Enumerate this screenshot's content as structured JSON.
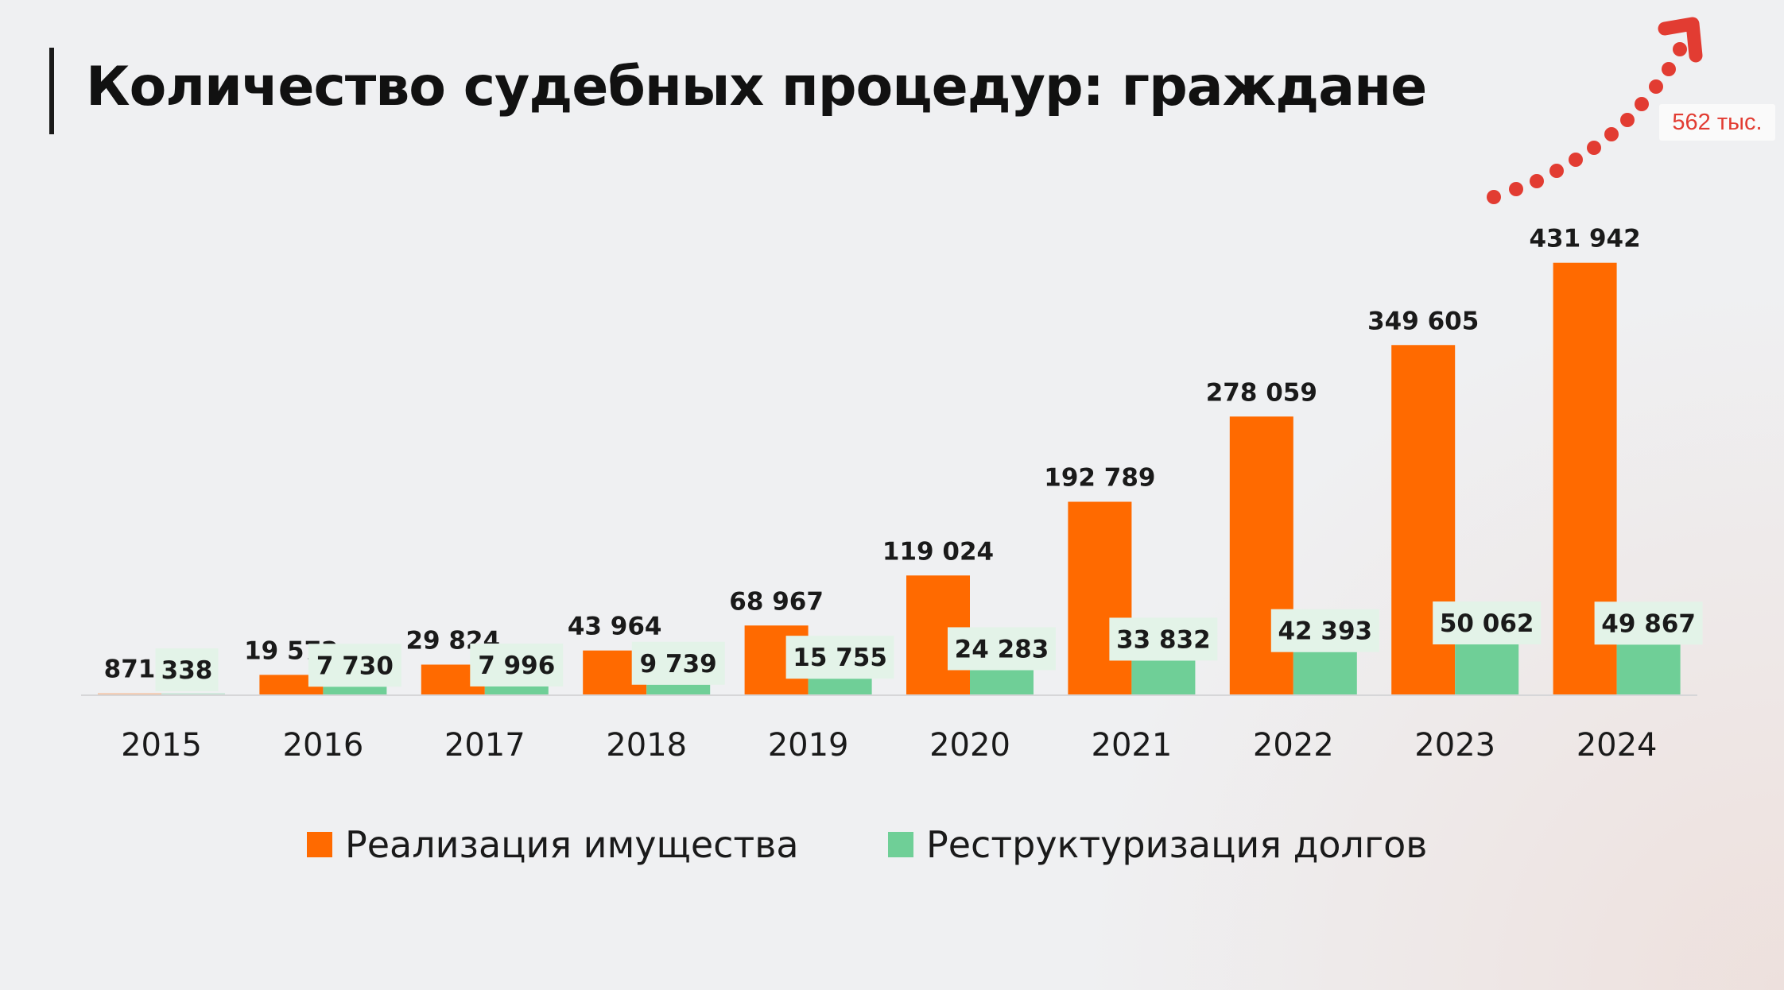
{
  "title": "Количество судебных процедур: граждане",
  "callout": "562 тыс.",
  "colors": {
    "orange": "#ff6a00",
    "green": "#6fcf97",
    "label_bg": "#e3f3e8",
    "arrow": "#e23c32"
  },
  "chart_data": {
    "type": "bar",
    "title": "Количество судебных процедур: граждане",
    "xlabel": "",
    "ylabel": "",
    "ylim": [
      0,
      450000
    ],
    "grid": false,
    "legend_position": "bottom",
    "categories": [
      "2015",
      "2016",
      "2017",
      "2018",
      "2019",
      "2020",
      "2021",
      "2022",
      "2023",
      "2024"
    ],
    "series": [
      {
        "name": "Реализация имущества",
        "color": "#ff6a00",
        "values": [
          871,
          19572,
          29824,
          43964,
          68967,
          119024,
          192789,
          278059,
          349605,
          431942
        ],
        "labels": [
          "871",
          "19 572",
          "29 824",
          "43 964",
          "68 967",
          "119 024",
          "192 789",
          "278 059",
          "349 605",
          "431 942"
        ]
      },
      {
        "name": "Реструктуризация долгов",
        "color": "#6fcf97",
        "values": [
          338,
          7730,
          7996,
          9739,
          15755,
          24283,
          33832,
          42393,
          50062,
          49867
        ],
        "labels": [
          "338",
          "7 730",
          "7 996",
          "9 739",
          "15 755",
          "24 283",
          "33 832",
          "42 393",
          "50 062",
          "49 867"
        ]
      }
    ],
    "annotations": [
      {
        "text": "562 тыс.",
        "type": "trend-arrow"
      }
    ]
  }
}
